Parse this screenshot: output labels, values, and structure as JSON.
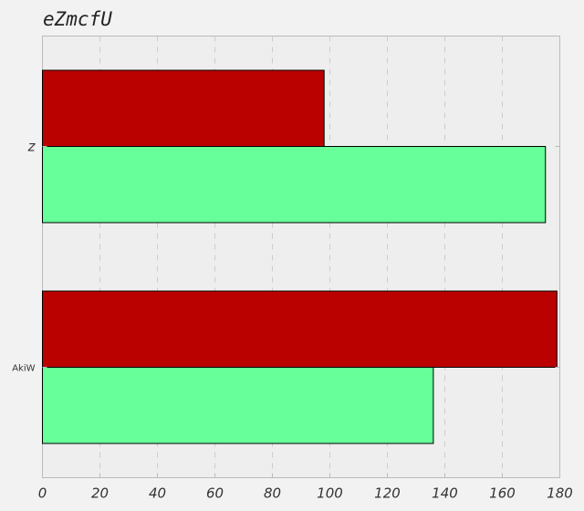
{
  "chart_data": {
    "type": "bar",
    "orientation": "horizontal",
    "title": "eZmcfU",
    "categories": [
      "z",
      "AkiW"
    ],
    "series": [
      {
        "values": [
          98,
          179
        ],
        "color": "#bb0000"
      },
      {
        "values": [
          175,
          136
        ],
        "color": "#66ff99"
      }
    ],
    "xlim": [
      0,
      180
    ],
    "xticks": [
      "0",
      "20",
      "40",
      "60",
      "80",
      "100",
      "120",
      "140",
      "160",
      "180"
    ],
    "grid": "vertical dashed",
    "legend": "none"
  }
}
